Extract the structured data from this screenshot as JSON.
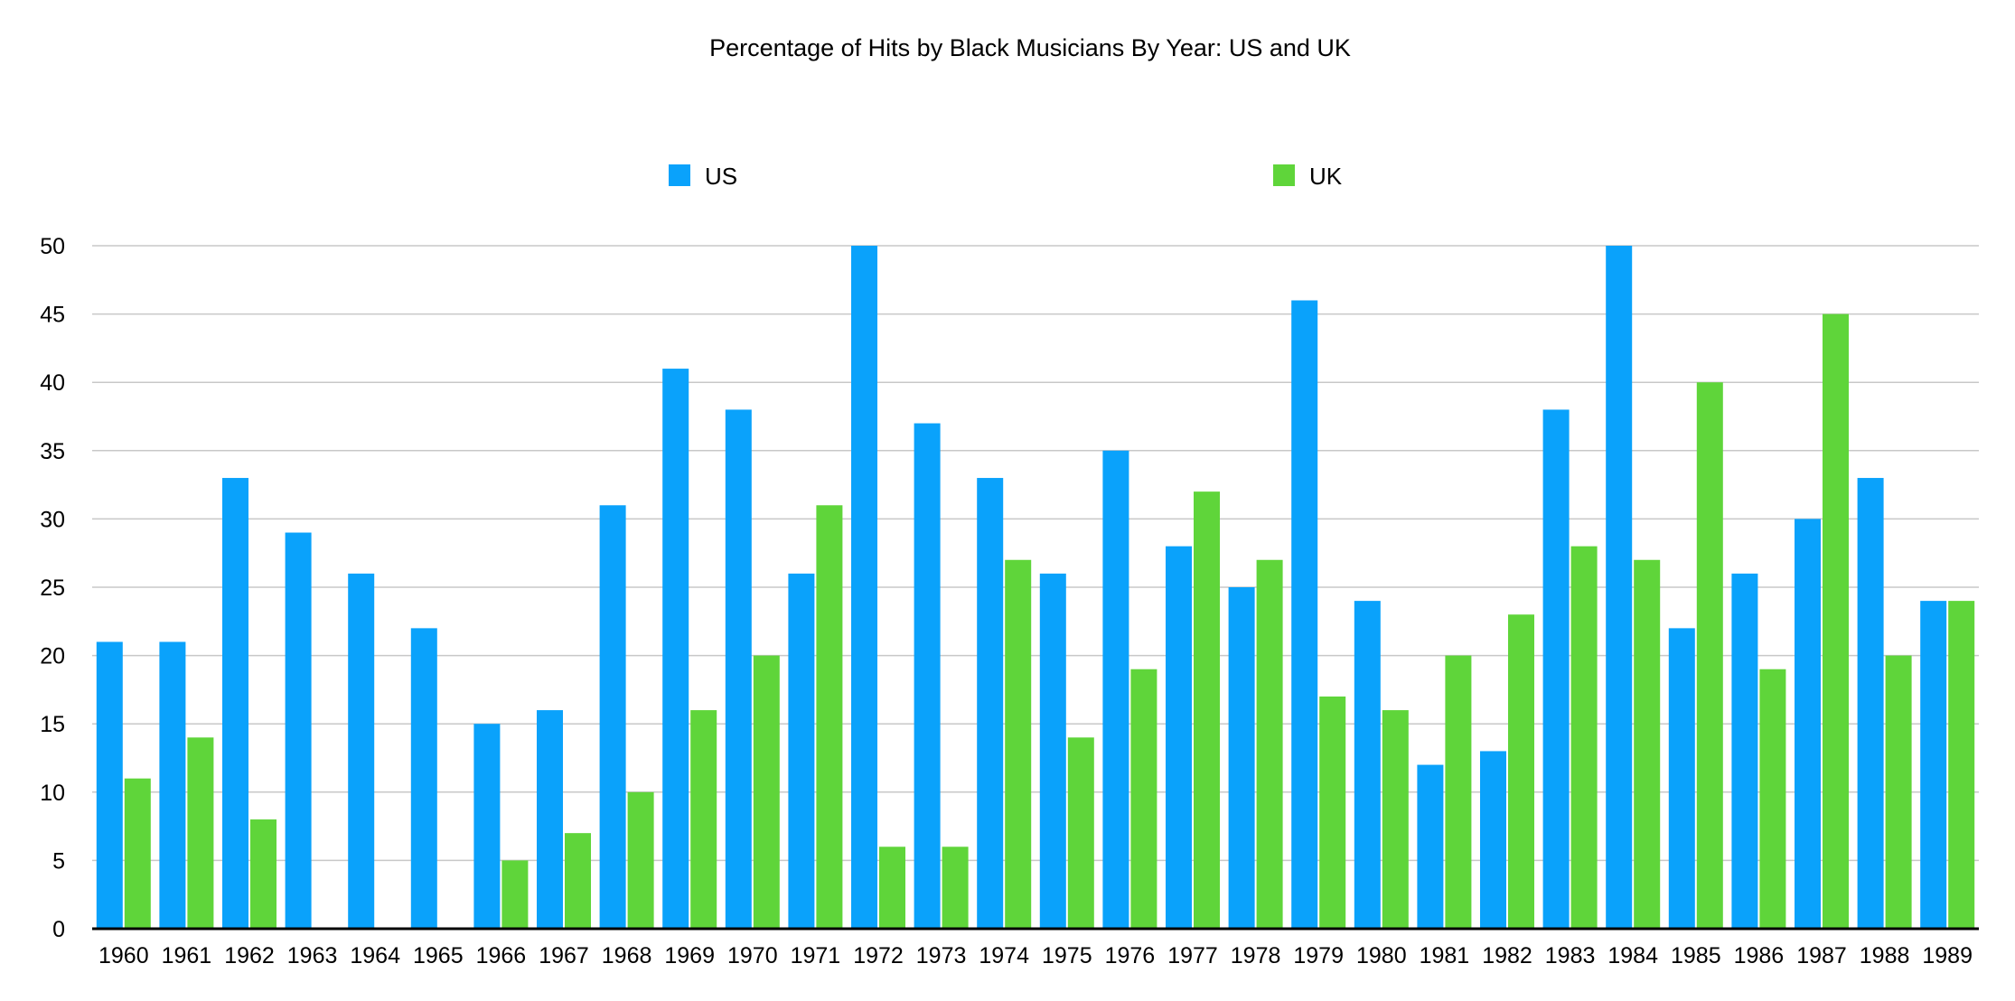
{
  "chart_data": {
    "type": "bar",
    "title": "Percentage of Hits by Black Musicians By Year: US and UK",
    "xlabel": "",
    "ylabel": "",
    "categories": [
      "1960",
      "1961",
      "1962",
      "1963",
      "1964",
      "1965",
      "1966",
      "1967",
      "1968",
      "1969",
      "1970",
      "1971",
      "1972",
      "1973",
      "1974",
      "1975",
      "1976",
      "1977",
      "1978",
      "1979",
      "1980",
      "1981",
      "1982",
      "1983",
      "1984",
      "1985",
      "1986",
      "1987",
      "1988",
      "1989"
    ],
    "series": [
      {
        "name": "US",
        "color": "#0aa2fb",
        "values": [
          21,
          21,
          33,
          29,
          26,
          22,
          15,
          16,
          31,
          41,
          38,
          26,
          50,
          37,
          33,
          26,
          35,
          28,
          25,
          46,
          24,
          12,
          13,
          38,
          50,
          22,
          26,
          30,
          33,
          24
        ]
      },
      {
        "name": "UK",
        "color": "#5fd53a",
        "values": [
          11,
          14,
          8,
          0,
          0,
          0,
          5,
          7,
          10,
          16,
          20,
          31,
          6,
          6,
          27,
          14,
          19,
          32,
          27,
          17,
          16,
          20,
          23,
          28,
          27,
          40,
          19,
          45,
          20,
          24
        ]
      }
    ],
    "ylim": [
      0,
      50
    ],
    "yticks": [
      0,
      5,
      10,
      15,
      20,
      25,
      30,
      35,
      40,
      45,
      50
    ],
    "grid": true,
    "legend_position": "top"
  }
}
